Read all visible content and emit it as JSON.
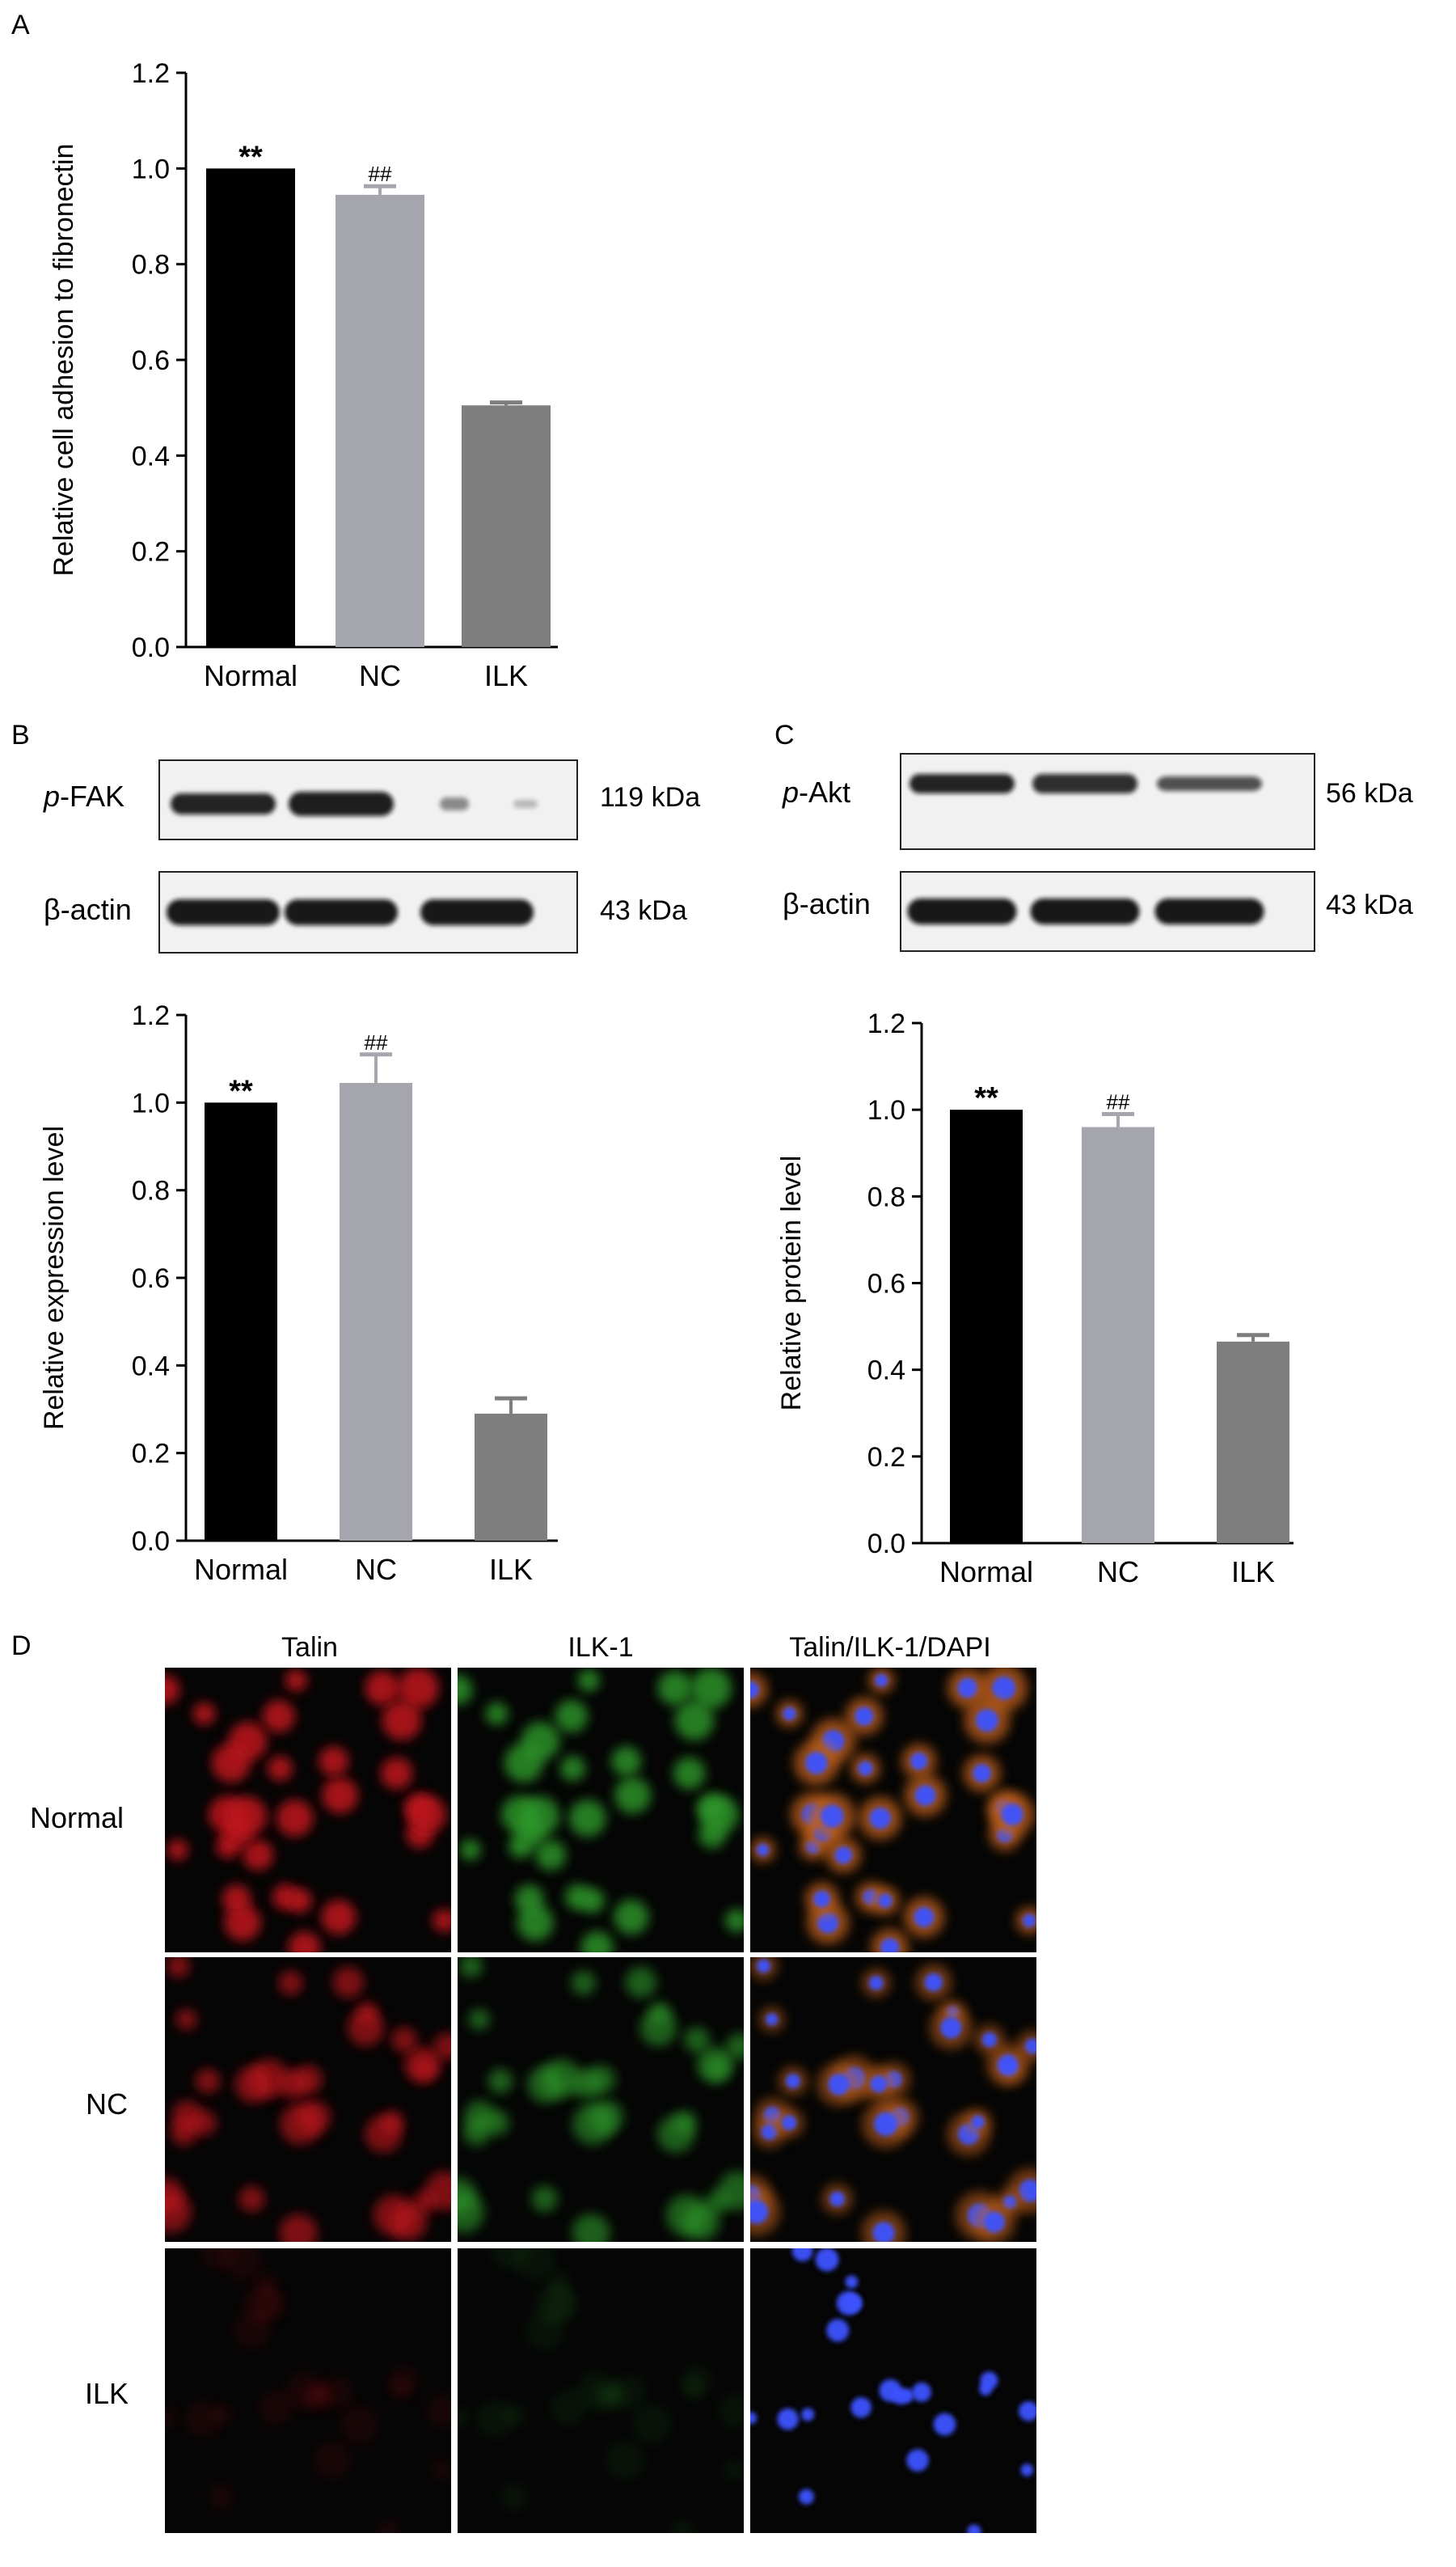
{
  "panel_labels": {
    "a": "A",
    "b": "B",
    "c": "C",
    "d": "D"
  },
  "colors": {
    "normal": "#000000",
    "nc": "#a5a5ad",
    "ilk": "#7e7e7e"
  },
  "chart_data": [
    {
      "id": "A",
      "type": "bar",
      "categories": [
        "Normal",
        "NC",
        "ILK"
      ],
      "values": [
        1.0,
        0.945,
        0.505
      ],
      "errors": [
        0.0,
        0.018,
        0.006
      ],
      "annotations": [
        "**",
        "##",
        ""
      ],
      "ylabel": "Relative cell adhesion to fibronectin",
      "xlabel": "",
      "title": "",
      "ylim": [
        0,
        1.2
      ],
      "yticks": [
        "0.0",
        "0.2",
        "0.4",
        "0.6",
        "0.8",
        "1.0",
        "1.2"
      ]
    },
    {
      "id": "B",
      "type": "bar",
      "categories": [
        "Normal",
        "NC",
        "ILK"
      ],
      "values": [
        1.0,
        1.045,
        0.29
      ],
      "errors": [
        0.0,
        0.065,
        0.035
      ],
      "annotations": [
        "**",
        "##",
        ""
      ],
      "ylabel": "Relative expression level",
      "xlabel": "",
      "title": "",
      "ylim": [
        0,
        1.2
      ],
      "yticks": [
        "0.0",
        "0.2",
        "0.4",
        "0.6",
        "0.8",
        "1.0",
        "1.2"
      ]
    },
    {
      "id": "C",
      "type": "bar",
      "categories": [
        "Normal",
        "NC",
        "ILK"
      ],
      "values": [
        1.0,
        0.96,
        0.465
      ],
      "errors": [
        0.0,
        0.03,
        0.015
      ],
      "annotations": [
        "**",
        "##",
        ""
      ],
      "ylabel": "Relative protein level",
      "xlabel": "",
      "title": "",
      "ylim": [
        0,
        1.2
      ],
      "yticks": [
        "0.0",
        "0.2",
        "0.4",
        "0.6",
        "0.8",
        "1.0",
        "1.2"
      ]
    }
  ],
  "blots": {
    "b": [
      {
        "prefix": "p",
        "name": "-FAK",
        "size": "119 kDa",
        "intensities": [
          0.85,
          0.9,
          0.22
        ]
      },
      {
        "prefix": "",
        "name": "β-actin",
        "size": "43 kDa",
        "intensities": [
          0.95,
          0.95,
          0.95
        ]
      }
    ],
    "c": [
      {
        "prefix": "p",
        "name": "-Akt",
        "size": "56 kDa",
        "intensities": [
          0.9,
          0.85,
          0.7
        ]
      },
      {
        "prefix": "",
        "name": "β-actin",
        "size": "43 kDa",
        "intensities": [
          0.95,
          0.95,
          0.95
        ]
      }
    ]
  },
  "microscopy": {
    "columns": [
      "Talin",
      "ILK-1",
      "Talin/ILK-1/DAPI"
    ],
    "rows": [
      "Normal",
      "NC",
      "ILK"
    ],
    "intensity": [
      1.0,
      0.75,
      0.12
    ]
  }
}
